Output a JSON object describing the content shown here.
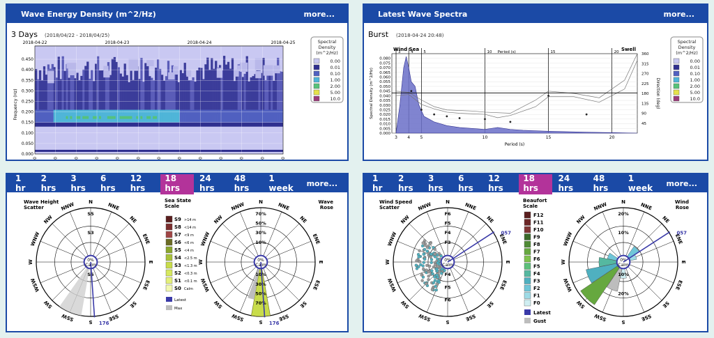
{
  "panel1": {
    "title": "Wave Energy Density (m^2/Hz)",
    "more": "more..."
  },
  "panel2": {
    "title": "Latest Wave Spectra",
    "more": "more..."
  },
  "tabs_left": {
    "items": [
      "1 hr",
      "2 hrs",
      "3 hrs",
      "6 hrs",
      "12 hrs",
      "18 hrs",
      "24 hrs",
      "48 hrs",
      "1 week"
    ],
    "active": 5,
    "more": "more..."
  },
  "tabs_right": {
    "items": [
      "1 hr",
      "2 hrs",
      "3 hrs",
      "6 hrs",
      "12 hrs",
      "18 hrs",
      "24 hrs",
      "48 hrs",
      "1 week"
    ],
    "active": 5,
    "more": "more..."
  },
  "legend_spectral": {
    "title_lines": [
      "Spectral",
      "Density",
      "(m^2/Hz)"
    ],
    "entries": [
      "0.00",
      "0.01",
      "0.10",
      "1.00",
      "2.00",
      "5.00",
      "10.0"
    ],
    "colors": [
      "#c8c8f0",
      "#2f2f8f",
      "#5060c0",
      "#4fb5d8",
      "#56c27a",
      "#e6e24a",
      "#9a3a7a"
    ]
  },
  "chart_data": [
    {
      "type": "heatmap",
      "title": "3 Days",
      "subtitle": "(2018/04/22 - 2018/04/25)",
      "ylabel": "Frequency (Hz)",
      "yticks": [
        "0.450",
        "0.400",
        "0.350",
        "0.300",
        "0.250",
        "0.200",
        "0.150",
        "0.100",
        "0.050",
        "0.000"
      ],
      "ylim": [
        0,
        0.47
      ],
      "date_labels": [
        "2018-04-22",
        "2018-04-23",
        "2018-04-24",
        "2018-04-25"
      ],
      "xticks": [
        "30:00",
        "36:00",
        "12:00",
        "18:00",
        "30:00",
        "36:00",
        "12:00",
        "18:00",
        "30:00",
        "36:00",
        "12:00",
        "18:00",
        "30:00"
      ]
    },
    {
      "type": "line",
      "title": "Burst",
      "subtitle": "(2018-04-24 20:48)",
      "labels": [
        "Wind Sea",
        "Swell"
      ],
      "top_axis_label": "Period (s)",
      "top_ticks": [
        "3",
        "4",
        "5",
        "10",
        "15",
        "20"
      ],
      "xlabel": "Period (s)",
      "xticks": [
        "3",
        "4",
        "5",
        "10",
        "15",
        "20"
      ],
      "ylabel": "Spectral Density (m^2/Hz)",
      "yticks": [
        "0.080",
        "0.075",
        "0.070",
        "0.065",
        "0.060",
        "0.055",
        "0.050",
        "0.045",
        "0.040",
        "0.035",
        "0.030",
        "0.025",
        "0.020",
        "0.015",
        "0.010",
        "0.005",
        "0.000"
      ],
      "ylim": [
        0,
        0.085
      ],
      "y2label": "Direction (deg)",
      "y2ticks": [
        "360",
        "315",
        "270",
        "225",
        "180",
        "135",
        "90",
        "45"
      ]
    },
    {
      "type": "polar",
      "title_lines": [
        "Wave Height",
        "Scatter"
      ],
      "directions": [
        "N",
        "NNE",
        "NE",
        "ENE",
        "E",
        "ESE",
        "SE",
        "SSE",
        "S",
        "SSW",
        "SW",
        "WSW",
        "W",
        "WNW",
        "NW",
        "NNW"
      ],
      "rings": [
        "S5",
        "S3",
        "S5"
      ],
      "center": [
        "0%",
        "Calm"
      ],
      "latest": "176"
    },
    {
      "type": "polar",
      "title_lines": [
        "Wave",
        "Rose"
      ],
      "directions": [
        "N",
        "NNE",
        "NE",
        "ENE",
        "E",
        "ESE",
        "SE",
        "SSE",
        "S",
        "SSW",
        "SW",
        "WSW",
        "W",
        "WNW",
        "NW",
        "NNW"
      ],
      "rings": [
        "70%",
        "50%",
        "30%",
        "10%",
        "10%",
        "30%",
        "50%",
        "70%"
      ],
      "center": [
        "0%",
        "Calm"
      ],
      "latest": "176"
    },
    {
      "type": "polar",
      "title_lines": [
        "Wind Speed",
        "Scatter"
      ],
      "directions": [
        "N",
        "NNE",
        "NE",
        "ENE",
        "E",
        "ESE",
        "SE",
        "SSE",
        "S",
        "SSW",
        "SW",
        "WSW",
        "W",
        "WNW",
        "NW",
        "NNW"
      ],
      "rings": [
        "F6",
        "F5",
        "F4",
        "F3",
        "F4",
        "F5",
        "F6"
      ],
      "center": [
        "0%",
        "Calm"
      ],
      "latest": "057"
    },
    {
      "type": "polar",
      "title_lines": [
        "Wind",
        "Rose"
      ],
      "directions": [
        "N",
        "NNE",
        "NE",
        "ENE",
        "E",
        "ESE",
        "SE",
        "SSE",
        "S",
        "SSW",
        "SW",
        "WSW",
        "W",
        "WNW",
        "NW",
        "NNW"
      ],
      "rings": [
        "20%",
        "10%",
        "10%",
        "20%"
      ],
      "center": [
        "0%",
        "Calm"
      ],
      "latest": "057"
    }
  ],
  "sea_state_legend": {
    "title_lines": [
      "Sea State",
      "Scale"
    ],
    "entries": [
      {
        "label": "S9",
        "range": ">14 m",
        "color": "#5a1e1e"
      },
      {
        "label": "S8",
        "range": "<14 m",
        "color": "#7b2d2d"
      },
      {
        "label": "S7",
        "range": "<9 m",
        "color": "#a04545"
      },
      {
        "label": "S6",
        "range": "<6 m",
        "color": "#6b6b25"
      },
      {
        "label": "S5",
        "range": "<4 m",
        "color": "#8aa62d"
      },
      {
        "label": "S4",
        "range": "<2.5 m",
        "color": "#a9c23a"
      },
      {
        "label": "S3",
        "range": "<1.3 m",
        "color": "#c8dc4a"
      },
      {
        "label": "S2",
        "range": "<0.3 m",
        "color": "#d6e85e"
      },
      {
        "label": "S1",
        "range": "<0.1 m",
        "color": "#e4f07a"
      },
      {
        "label": "S0",
        "range": "Calm",
        "color": "#f2f8b0"
      }
    ],
    "latest": "Latest",
    "max": "Max"
  },
  "beaufort_legend": {
    "title_lines": [
      "Beaufort",
      "Scale"
    ],
    "entries": [
      {
        "label": "F12",
        "color": "#5a1e1e"
      },
      {
        "label": "F11",
        "color": "#6b2626"
      },
      {
        "label": "F10",
        "color": "#803535"
      },
      {
        "label": "F9",
        "color": "#3a6a2a"
      },
      {
        "label": "F8",
        "color": "#4f8a35"
      },
      {
        "label": "F7",
        "color": "#66a83f"
      },
      {
        "label": "F6",
        "color": "#7fc24d"
      },
      {
        "label": "F5",
        "color": "#5cc07a"
      },
      {
        "label": "F4",
        "color": "#55b8a0"
      },
      {
        "label": "F3",
        "color": "#4fb0c0"
      },
      {
        "label": "F2",
        "color": "#6fc6d8"
      },
      {
        "label": "F1",
        "color": "#9edbe6"
      },
      {
        "label": "F0",
        "color": "#cfeef2"
      }
    ],
    "latest": "Latest",
    "gust": "Gust"
  }
}
